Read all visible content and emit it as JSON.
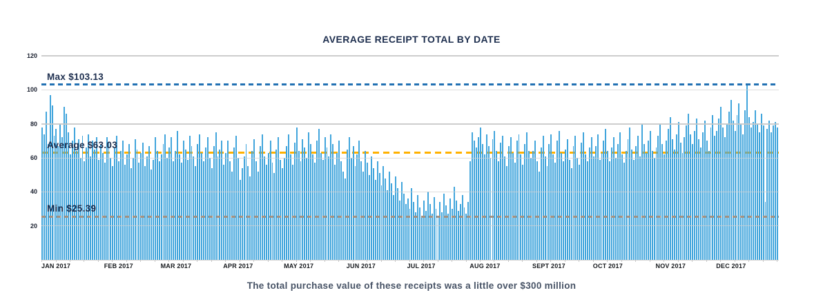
{
  "title": "AVERAGE RECEIPT TOTAL BY DATE",
  "caption": "The total purchase value of these receipts was a little over $300 million",
  "colors": {
    "bar": "#41a5dc",
    "title_text": "#1d2e4e",
    "caption_text": "#475366",
    "max_line": "#2271b3",
    "avg_line": "#ffb100",
    "min_line": "#a39181",
    "gridline": "#d2d2d2"
  },
  "y_axis": {
    "ticks": [
      20,
      40,
      60,
      80,
      100,
      120
    ],
    "major_ticks": [
      80,
      120
    ],
    "max": 120
  },
  "annotations": [
    {
      "name": "max",
      "label": "Max $103.13",
      "value": 103.13,
      "color": "#2271b3",
      "dash": 7,
      "gap": 5,
      "layer": "front"
    },
    {
      "name": "average",
      "label": "Average $63.03",
      "value": 63.03,
      "color": "#ffb100",
      "dash": 9,
      "gap": 6,
      "layer": "back"
    },
    {
      "name": "min",
      "label": "Min $25.39",
      "value": 25.39,
      "color": "#a39181",
      "dash": 6,
      "gap": 5,
      "layer": "front"
    }
  ],
  "stats": {
    "max": 103.13,
    "average": 63.03,
    "min": 25.39
  },
  "chart_data": {
    "type": "bar",
    "title": "AVERAGE RECEIPT TOTAL BY DATE",
    "xlabel": "",
    "ylabel": "",
    "ylim": [
      0,
      120
    ],
    "grid": true,
    "x_tick_interval_days": 7,
    "months": [
      {
        "label": "JAN 2017",
        "values": [
          78,
          74,
          87,
          68,
          97,
          91,
          73,
          77,
          67,
          80,
          72,
          90,
          86,
          75,
          62,
          70,
          78,
          64,
          71,
          60,
          73,
          58,
          66,
          74,
          61,
          70,
          65,
          72,
          59,
          68,
          63
        ]
      },
      {
        "label": "FEB 2017",
        "values": [
          57,
          72,
          69,
          60,
          55,
          66,
          73,
          58,
          64,
          70,
          56,
          62,
          68,
          54,
          60,
          71,
          65,
          57,
          63,
          69,
          55,
          61,
          67,
          53,
          59,
          72,
          64,
          58
        ]
      },
      {
        "label": "MAR 2017",
        "values": [
          62,
          68,
          74,
          60,
          66,
          72,
          58,
          64,
          76,
          62,
          57,
          70,
          65,
          59,
          73,
          67,
          61,
          55,
          68,
          74,
          63,
          58,
          66,
          72,
          60,
          54,
          67,
          75,
          61,
          65,
          70
        ]
      },
      {
        "label": "APR 2017",
        "values": [
          56,
          63,
          70,
          58,
          52,
          66,
          73,
          60,
          47,
          54,
          61,
          68,
          55,
          49,
          64,
          71,
          58,
          52,
          67,
          74,
          61,
          56,
          63,
          70,
          57,
          51,
          65,
          72,
          59,
          54
        ]
      },
      {
        "label": "MAY 2017",
        "values": [
          60,
          67,
          74,
          62,
          56,
          69,
          78,
          64,
          58,
          71,
          66,
          60,
          75,
          68,
          62,
          57,
          70,
          77,
          63,
          59,
          72,
          66,
          61,
          74,
          68,
          56,
          63,
          70,
          58,
          52,
          48
        ]
      },
      {
        "label": "JUN 2017",
        "values": [
          65,
          72,
          60,
          67,
          55,
          62,
          70,
          58,
          52,
          64,
          57,
          50,
          61,
          54,
          47,
          58,
          51,
          44,
          55,
          48,
          41,
          52,
          45,
          38,
          49,
          42,
          35,
          46,
          39,
          33
        ]
      },
      {
        "label": "JUL 2017",
        "values": [
          36,
          30,
          42,
          34,
          28,
          38,
          31,
          26,
          35,
          29,
          40,
          33,
          27,
          37,
          30,
          25.39,
          34,
          28,
          39,
          32,
          27,
          36,
          30,
          43,
          35,
          29,
          33,
          38,
          31,
          27,
          34
        ]
      },
      {
        "label": "AUG 2017",
        "values": [
          58,
          75,
          70,
          66,
          72,
          78,
          68,
          62,
          74,
          67,
          60,
          71,
          76,
          64,
          58,
          69,
          73,
          61,
          55,
          67,
          72,
          63,
          57,
          70,
          74,
          62,
          56,
          68,
          75,
          64,
          60
        ]
      },
      {
        "label": "SEPT 2017",
        "values": [
          64,
          70,
          58,
          52,
          66,
          73,
          61,
          55,
          68,
          74,
          62,
          57,
          70,
          76,
          63,
          58,
          65,
          71,
          59,
          54,
          67,
          73,
          60,
          56,
          69,
          75,
          62,
          58,
          66,
          72
        ]
      },
      {
        "label": "OCT 2017",
        "values": [
          61,
          67,
          74,
          59,
          63,
          70,
          77,
          64,
          58,
          66,
          72,
          60,
          68,
          75,
          62,
          57,
          64,
          71,
          78,
          65,
          59,
          67,
          73,
          61,
          80,
          68,
          63,
          70,
          76,
          64,
          60
        ]
      },
      {
        "label": "NOV 2017",
        "values": [
          66,
          73,
          80,
          68,
          62,
          70,
          77,
          84,
          71,
          65,
          74,
          81,
          69,
          63,
          72,
          79,
          86,
          74,
          68,
          76,
          83,
          71,
          66,
          75,
          82,
          70,
          64,
          78,
          85,
          73
        ]
      },
      {
        "label": "DEC 2017",
        "values": [
          76,
          83,
          90,
          78,
          72,
          80,
          87,
          94,
          82,
          76,
          85,
          92,
          80,
          74,
          88,
          103.13,
          84,
          78,
          81,
          88,
          80,
          75,
          86,
          79,
          34,
          77,
          82,
          75,
          79,
          81,
          78
        ]
      }
    ]
  }
}
